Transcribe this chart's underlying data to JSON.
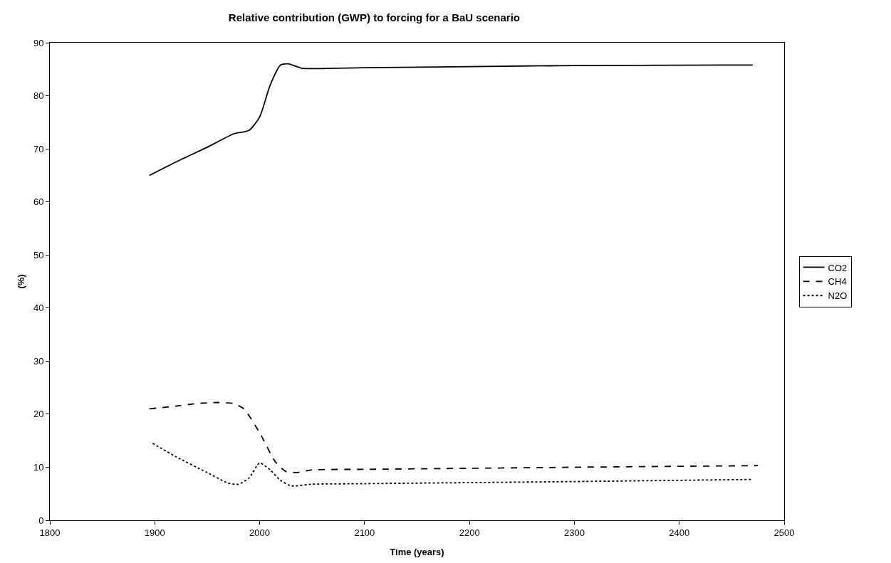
{
  "chart_data": {
    "type": "line",
    "title": "Relative contribution (GWP) to forcing for a BaU scenario",
    "xlabel": "Time (years)",
    "ylabel": "(%)",
    "xlim": [
      1800,
      2500
    ],
    "xticks": [
      1800,
      1900,
      2000,
      2100,
      2200,
      2300,
      2400,
      2500
    ],
    "ylim": [
      0,
      90
    ],
    "yticks": [
      0,
      10,
      20,
      30,
      40,
      50,
      60,
      70,
      80,
      90
    ],
    "grid": false,
    "legend": "right",
    "marker": "none",
    "series": [
      {
        "name": "CO2",
        "color": "#000000",
        "line_style": "solid",
        "x": [
          1895,
          1920,
          1950,
          1975,
          1990,
          2000,
          2010,
          2020,
          2028,
          2040,
          2100,
          2200,
          2300,
          2470
        ],
        "values": [
          65,
          67.5,
          70.3,
          72.8,
          73.5,
          76,
          82,
          85.8,
          86,
          85.2,
          85.3,
          85.5,
          85.7,
          85.8
        ]
      },
      {
        "name": "CH4",
        "color": "#000000",
        "line_style": "dashed",
        "x": [
          1895,
          1920,
          1940,
          1960,
          1975,
          1985,
          2000,
          2015,
          2025,
          2035,
          2050,
          2100,
          2200,
          2300,
          2475
        ],
        "values": [
          21,
          21.5,
          22,
          22.2,
          22,
          21,
          16.5,
          11,
          9.2,
          9,
          9.5,
          9.6,
          9.8,
          10,
          10.3
        ]
      },
      {
        "name": "N2O",
        "color": "#000000",
        "line_style": "dotted",
        "x": [
          1898,
          1920,
          1950,
          1970,
          1980,
          1990,
          2000,
          2010,
          2020,
          2030,
          2050,
          2100,
          2200,
          2300,
          2470
        ],
        "values": [
          14.5,
          12,
          9,
          7,
          6.8,
          8,
          10.8,
          9.5,
          7.5,
          6.5,
          6.8,
          6.9,
          7.1,
          7.3,
          7.7
        ]
      }
    ]
  }
}
